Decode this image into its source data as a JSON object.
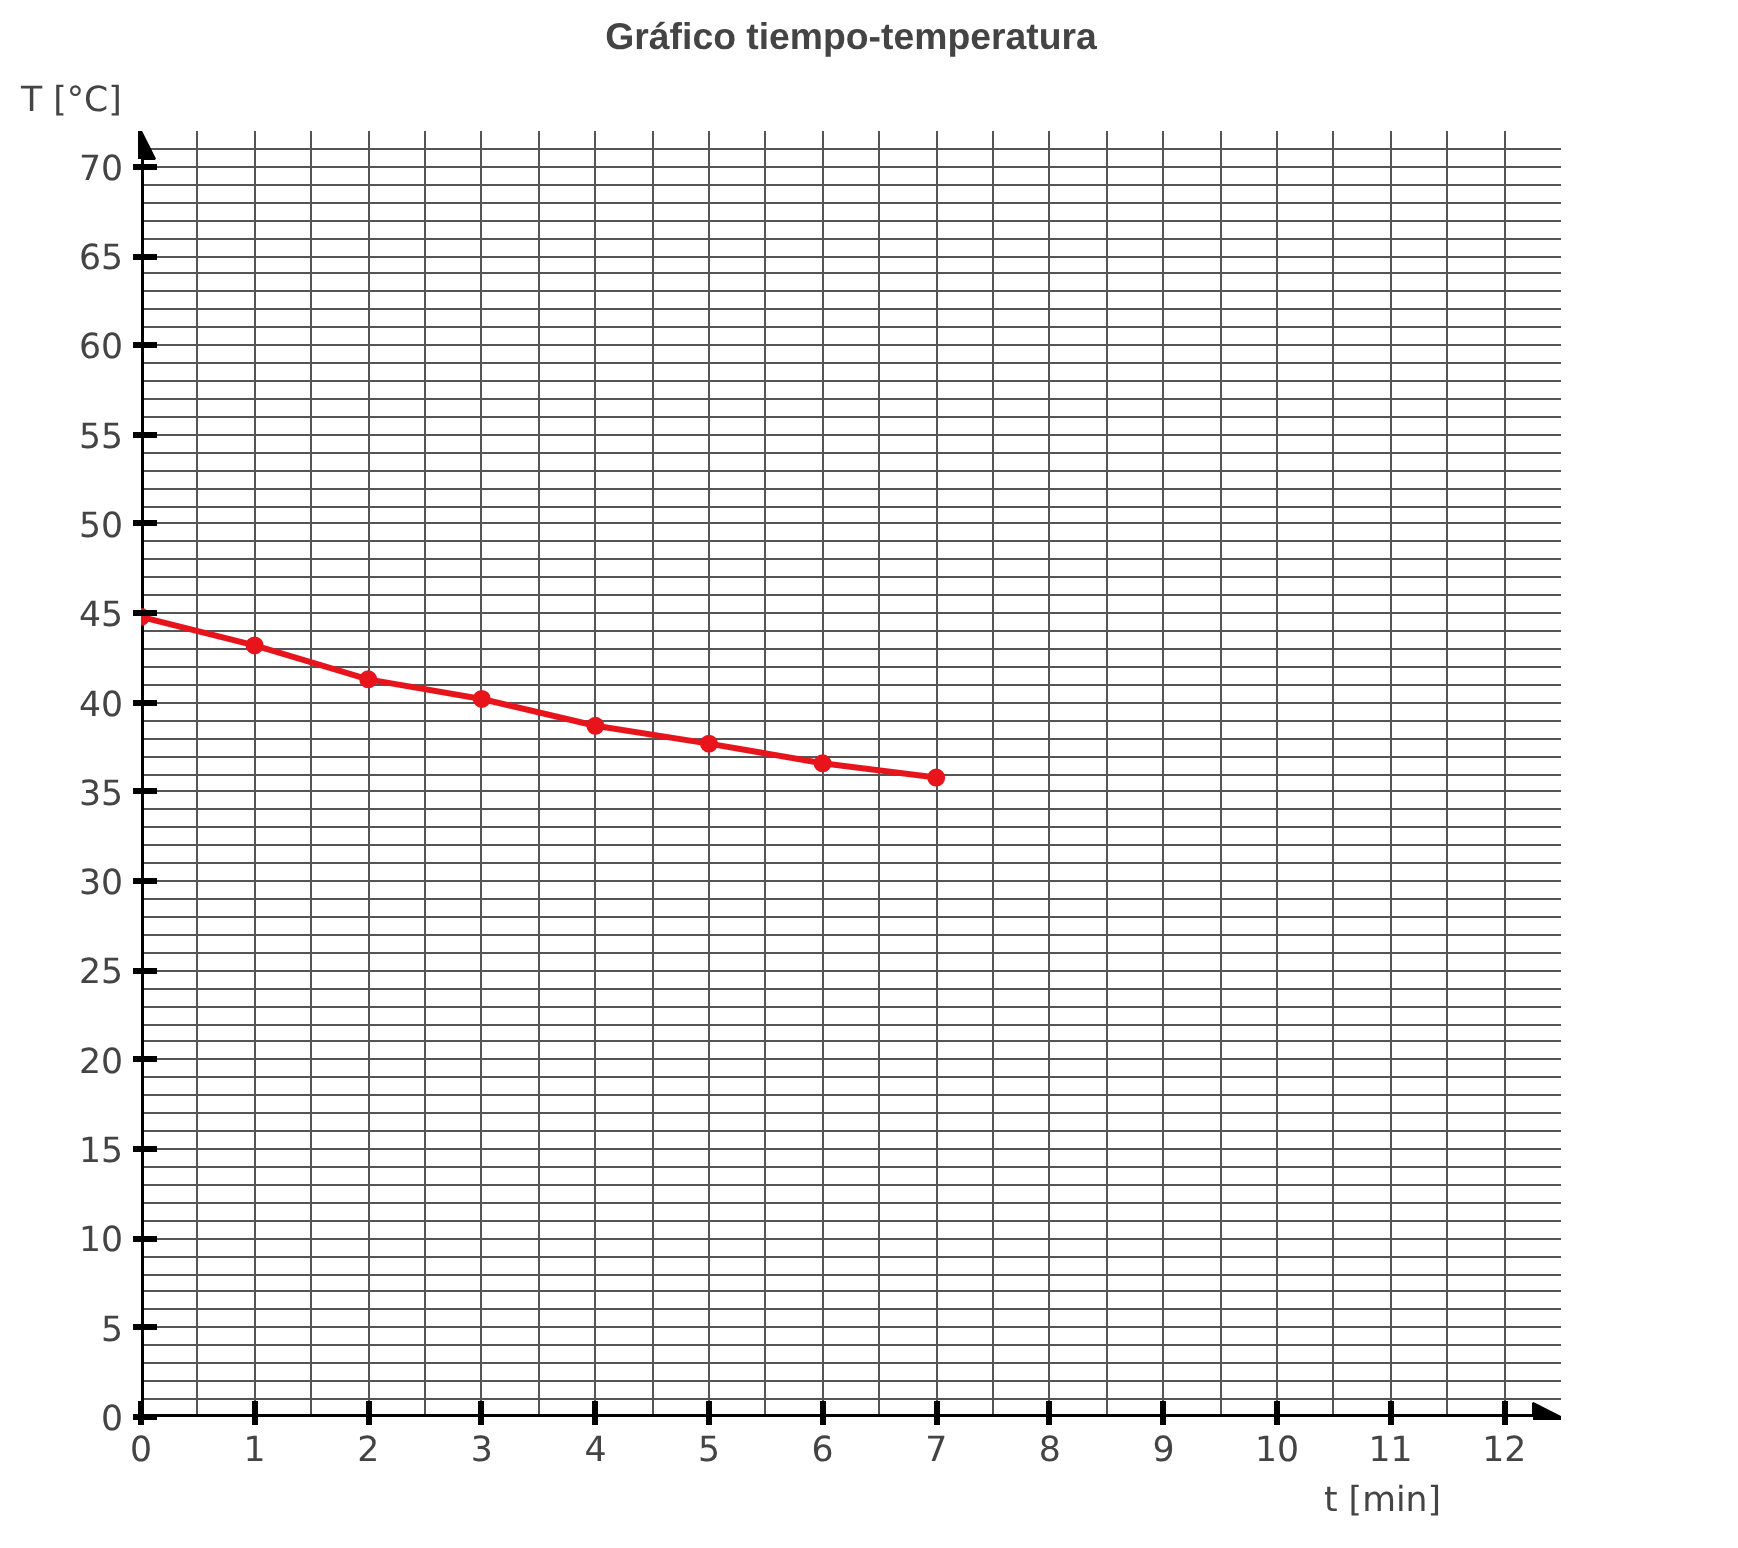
{
  "chart_data": {
    "type": "line",
    "title": "Gráfico tiempo-temperatura",
    "xlabel": "t [min]",
    "ylabel": "T [°C]",
    "x": [
      0,
      1,
      2,
      3,
      4,
      5,
      6,
      7
    ],
    "series": [
      {
        "color": "#e8141c",
        "values": [
          44.8,
          43.2,
          41.3,
          40.2,
          38.7,
          37.7,
          36.6,
          35.8
        ]
      }
    ],
    "xlim": [
      0,
      12.5
    ],
    "ylim": [
      0,
      72
    ],
    "xticks": [
      0,
      1,
      2,
      3,
      4,
      5,
      6,
      7,
      8,
      9,
      10,
      11,
      12
    ],
    "yticks": [
      0,
      5,
      10,
      15,
      20,
      25,
      30,
      35,
      40,
      45,
      50,
      55,
      60,
      65,
      70
    ],
    "grid": true,
    "marker": "circle",
    "line_style": "solid"
  }
}
